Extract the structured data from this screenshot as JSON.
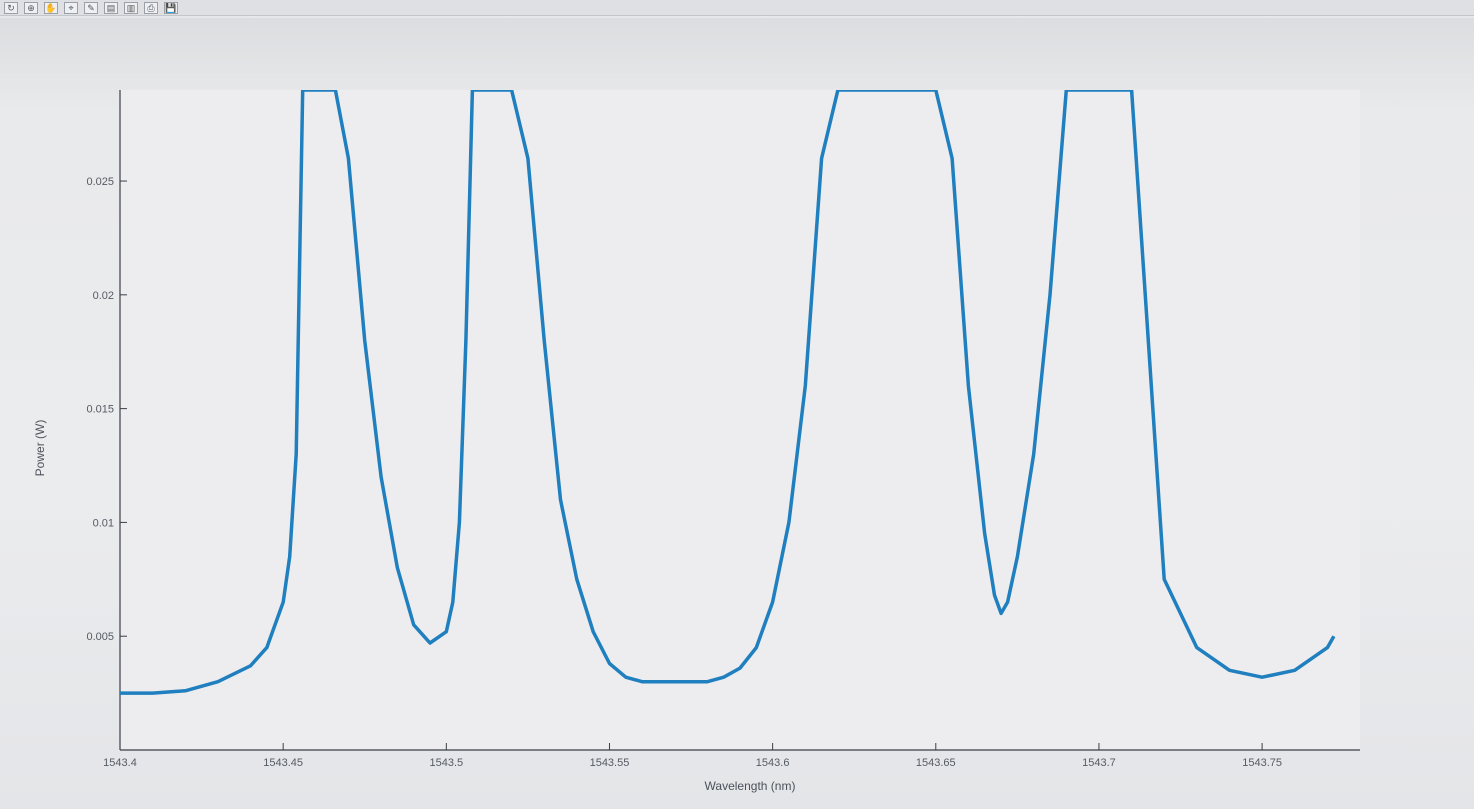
{
  "toolbar": {
    "icons": [
      "rotate-icon",
      "zoom-icon",
      "pan-icon",
      "data-cursor-icon",
      "brush-icon",
      "legend-icon",
      "colorbar-icon",
      "print-icon",
      "save-icon"
    ]
  },
  "colors": {
    "series": "#1f7fbf",
    "axis": "#3a3f46",
    "background": "#ebecee"
  },
  "chart_data": {
    "type": "line",
    "title": "",
    "xlabel": "Wavelength (nm)",
    "ylabel": "Power (W)",
    "xlim": [
      1543.4,
      1543.78
    ],
    "ylim": [
      0.0,
      0.029
    ],
    "xticks": [
      1543.4,
      1543.45,
      1543.5,
      1543.55,
      1543.6,
      1543.65,
      1543.7,
      1543.75
    ],
    "xtick_labels": [
      "1543.4",
      "1543.45",
      "1543.5",
      "1543.55",
      "1543.6",
      "1543.65",
      "1543.7",
      "1543.75"
    ],
    "yticks": [
      0.005,
      0.01,
      0.015,
      0.02,
      0.025
    ],
    "ytick_labels": [
      "0.005",
      "0.01",
      "0.015",
      "0.02",
      "0.025"
    ],
    "grid": false,
    "series": [
      {
        "x": [
          1543.4,
          1543.41,
          1543.42,
          1543.43,
          1543.44,
          1543.445,
          1543.45,
          1543.452,
          1543.454,
          1543.456,
          1543.458,
          1543.46,
          1543.462,
          1543.466,
          1543.47,
          1543.475,
          1543.48,
          1543.485,
          1543.49,
          1543.495,
          1543.5,
          1543.502,
          1543.504,
          1543.506,
          1543.508,
          1543.51,
          1543.512,
          1543.515,
          1543.52,
          1543.525,
          1543.53,
          1543.535,
          1543.54,
          1543.545,
          1543.55,
          1543.555,
          1543.56,
          1543.565,
          1543.57,
          1543.575,
          1543.58,
          1543.585,
          1543.59,
          1543.595,
          1543.6,
          1543.605,
          1543.61,
          1543.615,
          1543.62,
          1543.625,
          1543.63,
          1543.632,
          1543.635,
          1543.64,
          1543.645,
          1543.65,
          1543.655,
          1543.66,
          1543.665,
          1543.668,
          1543.67,
          1543.672,
          1543.675,
          1543.68,
          1543.685,
          1543.69,
          1543.695,
          1543.7,
          1543.705,
          1543.71,
          1543.72,
          1543.73,
          1543.74,
          1543.75,
          1543.76,
          1543.77,
          1543.772
        ],
        "y": [
          0.0025,
          0.0025,
          0.0026,
          0.003,
          0.0037,
          0.0045,
          0.0065,
          0.0085,
          0.013,
          0.029,
          0.029,
          0.029,
          0.029,
          0.029,
          0.026,
          0.018,
          0.012,
          0.008,
          0.0055,
          0.0047,
          0.0052,
          0.0065,
          0.01,
          0.018,
          0.029,
          0.029,
          0.029,
          0.029,
          0.029,
          0.026,
          0.018,
          0.011,
          0.0075,
          0.0052,
          0.0038,
          0.0032,
          0.003,
          0.003,
          0.003,
          0.003,
          0.003,
          0.0032,
          0.0036,
          0.0045,
          0.0065,
          0.01,
          0.016,
          0.026,
          0.029,
          0.029,
          0.029,
          0.029,
          0.029,
          0.029,
          0.029,
          0.029,
          0.026,
          0.016,
          0.0095,
          0.0068,
          0.006,
          0.0065,
          0.0085,
          0.013,
          0.02,
          0.029,
          0.029,
          0.029,
          0.029,
          0.029,
          0.0075,
          0.0045,
          0.0035,
          0.0032,
          0.0035,
          0.0045,
          0.005
        ]
      }
    ]
  }
}
